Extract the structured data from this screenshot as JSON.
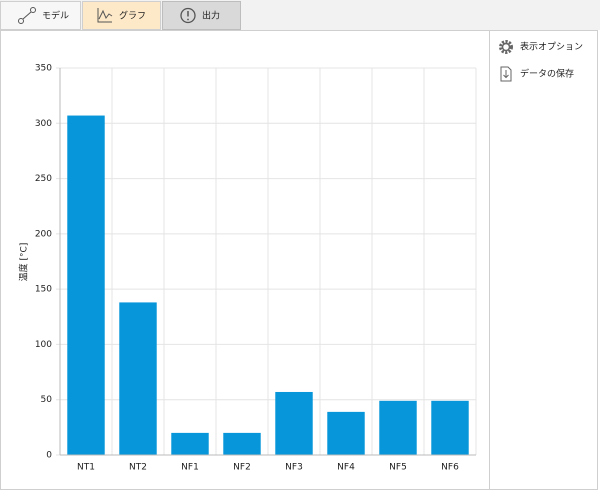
{
  "tabs": [
    "モデル",
    "グラフ",
    "出力"
  ],
  "side_menu": [
    "表示オプション",
    "データの保存"
  ],
  "chart_data": {
    "type": "bar",
    "y_label": "温度 [°C]",
    "categories": [
      "NT1",
      "NT2",
      "NF1",
      "NF2",
      "NF3",
      "NF4",
      "NF5",
      "NF6"
    ],
    "values": [
      307,
      138,
      20,
      20,
      57,
      39,
      49,
      49
    ],
    "color": "#0896db",
    "ylim": [
      0,
      350
    ],
    "yticks": [
      0,
      50,
      100,
      150,
      200,
      250,
      300,
      350
    ],
    "grid": true
  }
}
